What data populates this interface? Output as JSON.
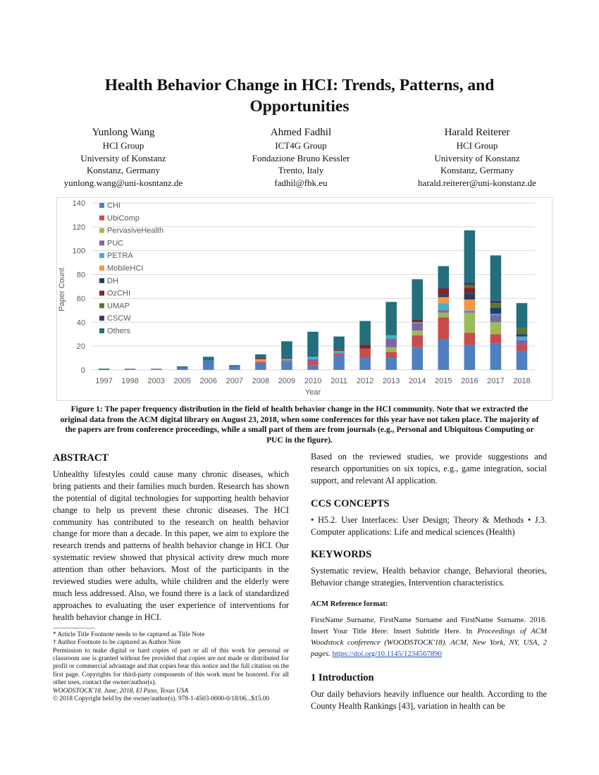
{
  "title": "Health Behavior Change in HCI: Trends, Patterns, and Opportunities",
  "authors": [
    {
      "name": "Yunlong Wang",
      "group": "HCI Group",
      "institution": "University of Konstanz",
      "location": "Konstanz, Germany",
      "email": "yunlong.wang@uni-kosntanz.de"
    },
    {
      "name": "Ahmed Fadhil",
      "group": "ICT4G Group",
      "institution": "Fondazione Bruno Kessler",
      "location": "Trento, Italy",
      "email": "fadhil@fbk.eu"
    },
    {
      "name": "Harald Reiterer",
      "group": "HCI Group",
      "institution": "University of Konstanz",
      "location": "Konstanz, Germany",
      "email": "harald.reiterer@uni-konstanz.de"
    }
  ],
  "chart_data": {
    "type": "bar",
    "stacked": true,
    "xlabel": "Year",
    "ylabel": "Paper Count",
    "ylim": [
      0,
      140
    ],
    "yticks": [
      0,
      20,
      40,
      60,
      80,
      100,
      120,
      140
    ],
    "grid": true,
    "legend": "top-left",
    "categories": [
      "1997",
      "1998",
      "2003",
      "2005",
      "2006",
      "2007",
      "2008",
      "2009",
      "2010",
      "2011",
      "2012",
      "2013",
      "2014",
      "2015",
      "2016",
      "2017",
      "2018"
    ],
    "series": [
      {
        "name": "CHI",
        "color": "#4e7fc1",
        "values": [
          0,
          1,
          1,
          2,
          8,
          3,
          5,
          7,
          4,
          12,
          10,
          10,
          19,
          26,
          21,
          22,
          16
        ]
      },
      {
        "name": "UbiComp",
        "color": "#c94c4c",
        "values": [
          0,
          0,
          0,
          0,
          0,
          0,
          1,
          0,
          3,
          2,
          8,
          5,
          10,
          18,
          10,
          8,
          5
        ]
      },
      {
        "name": "PervasiveHealth",
        "color": "#9bbb59",
        "values": [
          0,
          0,
          0,
          0,
          0,
          0,
          0,
          0,
          0,
          0,
          0,
          4,
          4,
          4,
          17,
          10,
          0
        ]
      },
      {
        "name": "PUC",
        "color": "#8064a2",
        "values": [
          0,
          0,
          0,
          0,
          0,
          0,
          1,
          1,
          2,
          0,
          0,
          7,
          6,
          2,
          1,
          6,
          4
        ]
      },
      {
        "name": "PETRA",
        "color": "#4bacc6",
        "values": [
          0,
          0,
          0,
          0,
          0,
          0,
          0,
          0,
          2,
          2,
          0,
          3,
          1,
          6,
          1,
          1,
          3
        ]
      },
      {
        "name": "MobileHCI",
        "color": "#f79646",
        "values": [
          0,
          0,
          0,
          0,
          0,
          0,
          2,
          1,
          0,
          0,
          0,
          0,
          0,
          5,
          9,
          0,
          0
        ]
      },
      {
        "name": "DH",
        "color": "#1f3f6b",
        "values": [
          0,
          0,
          0,
          0,
          0,
          0,
          0,
          0,
          0,
          0,
          0,
          0,
          0,
          2,
          5,
          5,
          2
        ]
      },
      {
        "name": "OzCHI",
        "color": "#772828",
        "values": [
          0,
          0,
          0,
          0,
          0,
          0,
          1,
          0,
          0,
          1,
          3,
          0,
          2,
          5,
          5,
          0,
          0
        ]
      },
      {
        "name": "UMAP",
        "color": "#5f7530",
        "values": [
          0,
          0,
          0,
          0,
          0,
          0,
          0,
          0,
          0,
          0,
          0,
          0,
          0,
          0,
          2,
          4,
          5
        ]
      },
      {
        "name": "CSCW",
        "color": "#47335f",
        "values": [
          0,
          0,
          0,
          0,
          0,
          0,
          0,
          0,
          0,
          0,
          0,
          0,
          0,
          1,
          2,
          2,
          0
        ]
      },
      {
        "name": "Others",
        "color": "#246e7e",
        "values": [
          1,
          0,
          0,
          1,
          3,
          1,
          3,
          15,
          21,
          11,
          20,
          28,
          34,
          18,
          44,
          38,
          21
        ]
      }
    ]
  },
  "caption": "Figure 1:   The paper frequency distribution in the field of health behavior change in the HCI community. Note that we extracted the original data from the ACM digital library on August 23, 2018, when some conferences for this year have not taken place. The majority of the papers are from conference proceedings, while a small part of them are from journals (e.g., Personal and Ubiquitous Computing or PUC in the figure).",
  "abstract": {
    "heading": "ABSTRACT",
    "text": "Unhealthy lifestyles could cause many chronic diseases, which bring patients and their families much burden. Research has shown the potential of digital technologies for supporting health behavior change to help us prevent these chronic diseases. The HCI community has contributed to the research on health behavior change for more than a decade. In this paper, we aim to explore the research trends and patterns of health behavior change in HCI. Our systematic review showed that physical activity drew much more attention than other behaviors. Most of the participants in the reviewed studies were adults, while children and the elderly were much less addressed. Also, we found there is a lack of standardized approaches to evaluating the user experience of interventions for health behavior change in HCI.",
    "continued": "Based on the reviewed studies, we provide suggestions and research opportunities on six topics, e.g., game integration, social support, and relevant AI application."
  },
  "footnotes": {
    "title_note": "* Article Title Footnote needs to be captured as Title Note",
    "author_note": "† Author Footnote to be captured as Author Note",
    "permission": "Permission to make digital or hard copies of part or all of this work for personal or classroom use is granted without fee provided that copies are not made or distributed for profit or commercial advantage and that copies bear this notice and the full citation on the first page. Copyrights for third-party components of this work must be honored. For all other uses, contact the owner/author(s).",
    "venue": "WOODSTOCK'18, June, 2018, El Paso, Texas USA",
    "copyright": "© 2018 Copyright held by the owner/author(s). 978-1-4503-0000-0/18/06...$15.00"
  },
  "ccs": {
    "heading": "CCS CONCEPTS",
    "text": "• H5.2. User Interfaces: User Design; Theory & Methods • J.3. Computer applications: Life and medical sciences (Health)"
  },
  "keywords": {
    "heading": "KEYWORDS",
    "text": "Systematic review, Health behavior change, Behavioral theories, Behavior change strategies, Intervention characteristics."
  },
  "reference": {
    "heading": "ACM Reference format:",
    "text": "FirstName Surname, FirstName Surname and FirstName Surname. 2018. Insert Your Title Here: Insert Subtitle Here. In ",
    "venue_italic": "Proceedings of ACM Woodstock conference (WOODSTOCK'18). ACM, New York, NY, USA, 2 pages.",
    "doi": "https://doi.org/10.1145/1234567890"
  },
  "intro": {
    "heading": "1    Introduction",
    "text": "Our daily behaviors heavily influence our health. According to the County Health Rankings [43], variation in health can be"
  }
}
